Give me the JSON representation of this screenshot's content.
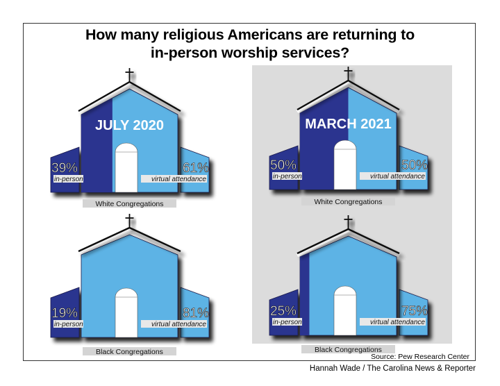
{
  "title": {
    "line1": "How many religious Americans are returning to",
    "line2": "in-person worship services?"
  },
  "colors": {
    "in_person": "#2b348f",
    "virtual": "#5db3e5",
    "panel": "#dcdcdc",
    "label_bar": "#d4d4d4"
  },
  "icons": {
    "cross": "cross-icon"
  },
  "churches": [
    {
      "id": "white-2020",
      "period": "JULY 2020",
      "group": "White Congregations",
      "in_person_pct": "39%",
      "in_person_value": 39,
      "in_person_label": "in-person",
      "virtual_pct": "61%",
      "virtual_value": 61,
      "virtual_label": "virtual attendance"
    },
    {
      "id": "white-2021",
      "period": "MARCH 2021",
      "group": "White Congregations",
      "in_person_pct": "50%",
      "in_person_value": 50,
      "in_person_label": "in-person",
      "virtual_pct": "50%",
      "virtual_value": 50,
      "virtual_label": "virtual attendance"
    },
    {
      "id": "black-2020",
      "period": "",
      "group": "Black Congregations",
      "in_person_pct": "19%",
      "in_person_value": 19,
      "in_person_label": "in-person",
      "virtual_pct": "81%",
      "virtual_value": 81,
      "virtual_label": "virtual attendance"
    },
    {
      "id": "black-2021",
      "period": "",
      "group": "Black Congregations",
      "in_person_pct": "25%",
      "in_person_value": 25,
      "in_person_label": "in-person",
      "virtual_pct": "75%",
      "virtual_value": 75,
      "virtual_label": "virtual attendance"
    }
  ],
  "footer": {
    "source": "Source: Pew Research Center",
    "credit": "Hannah Wade / The Carolina News & Reporter"
  }
}
